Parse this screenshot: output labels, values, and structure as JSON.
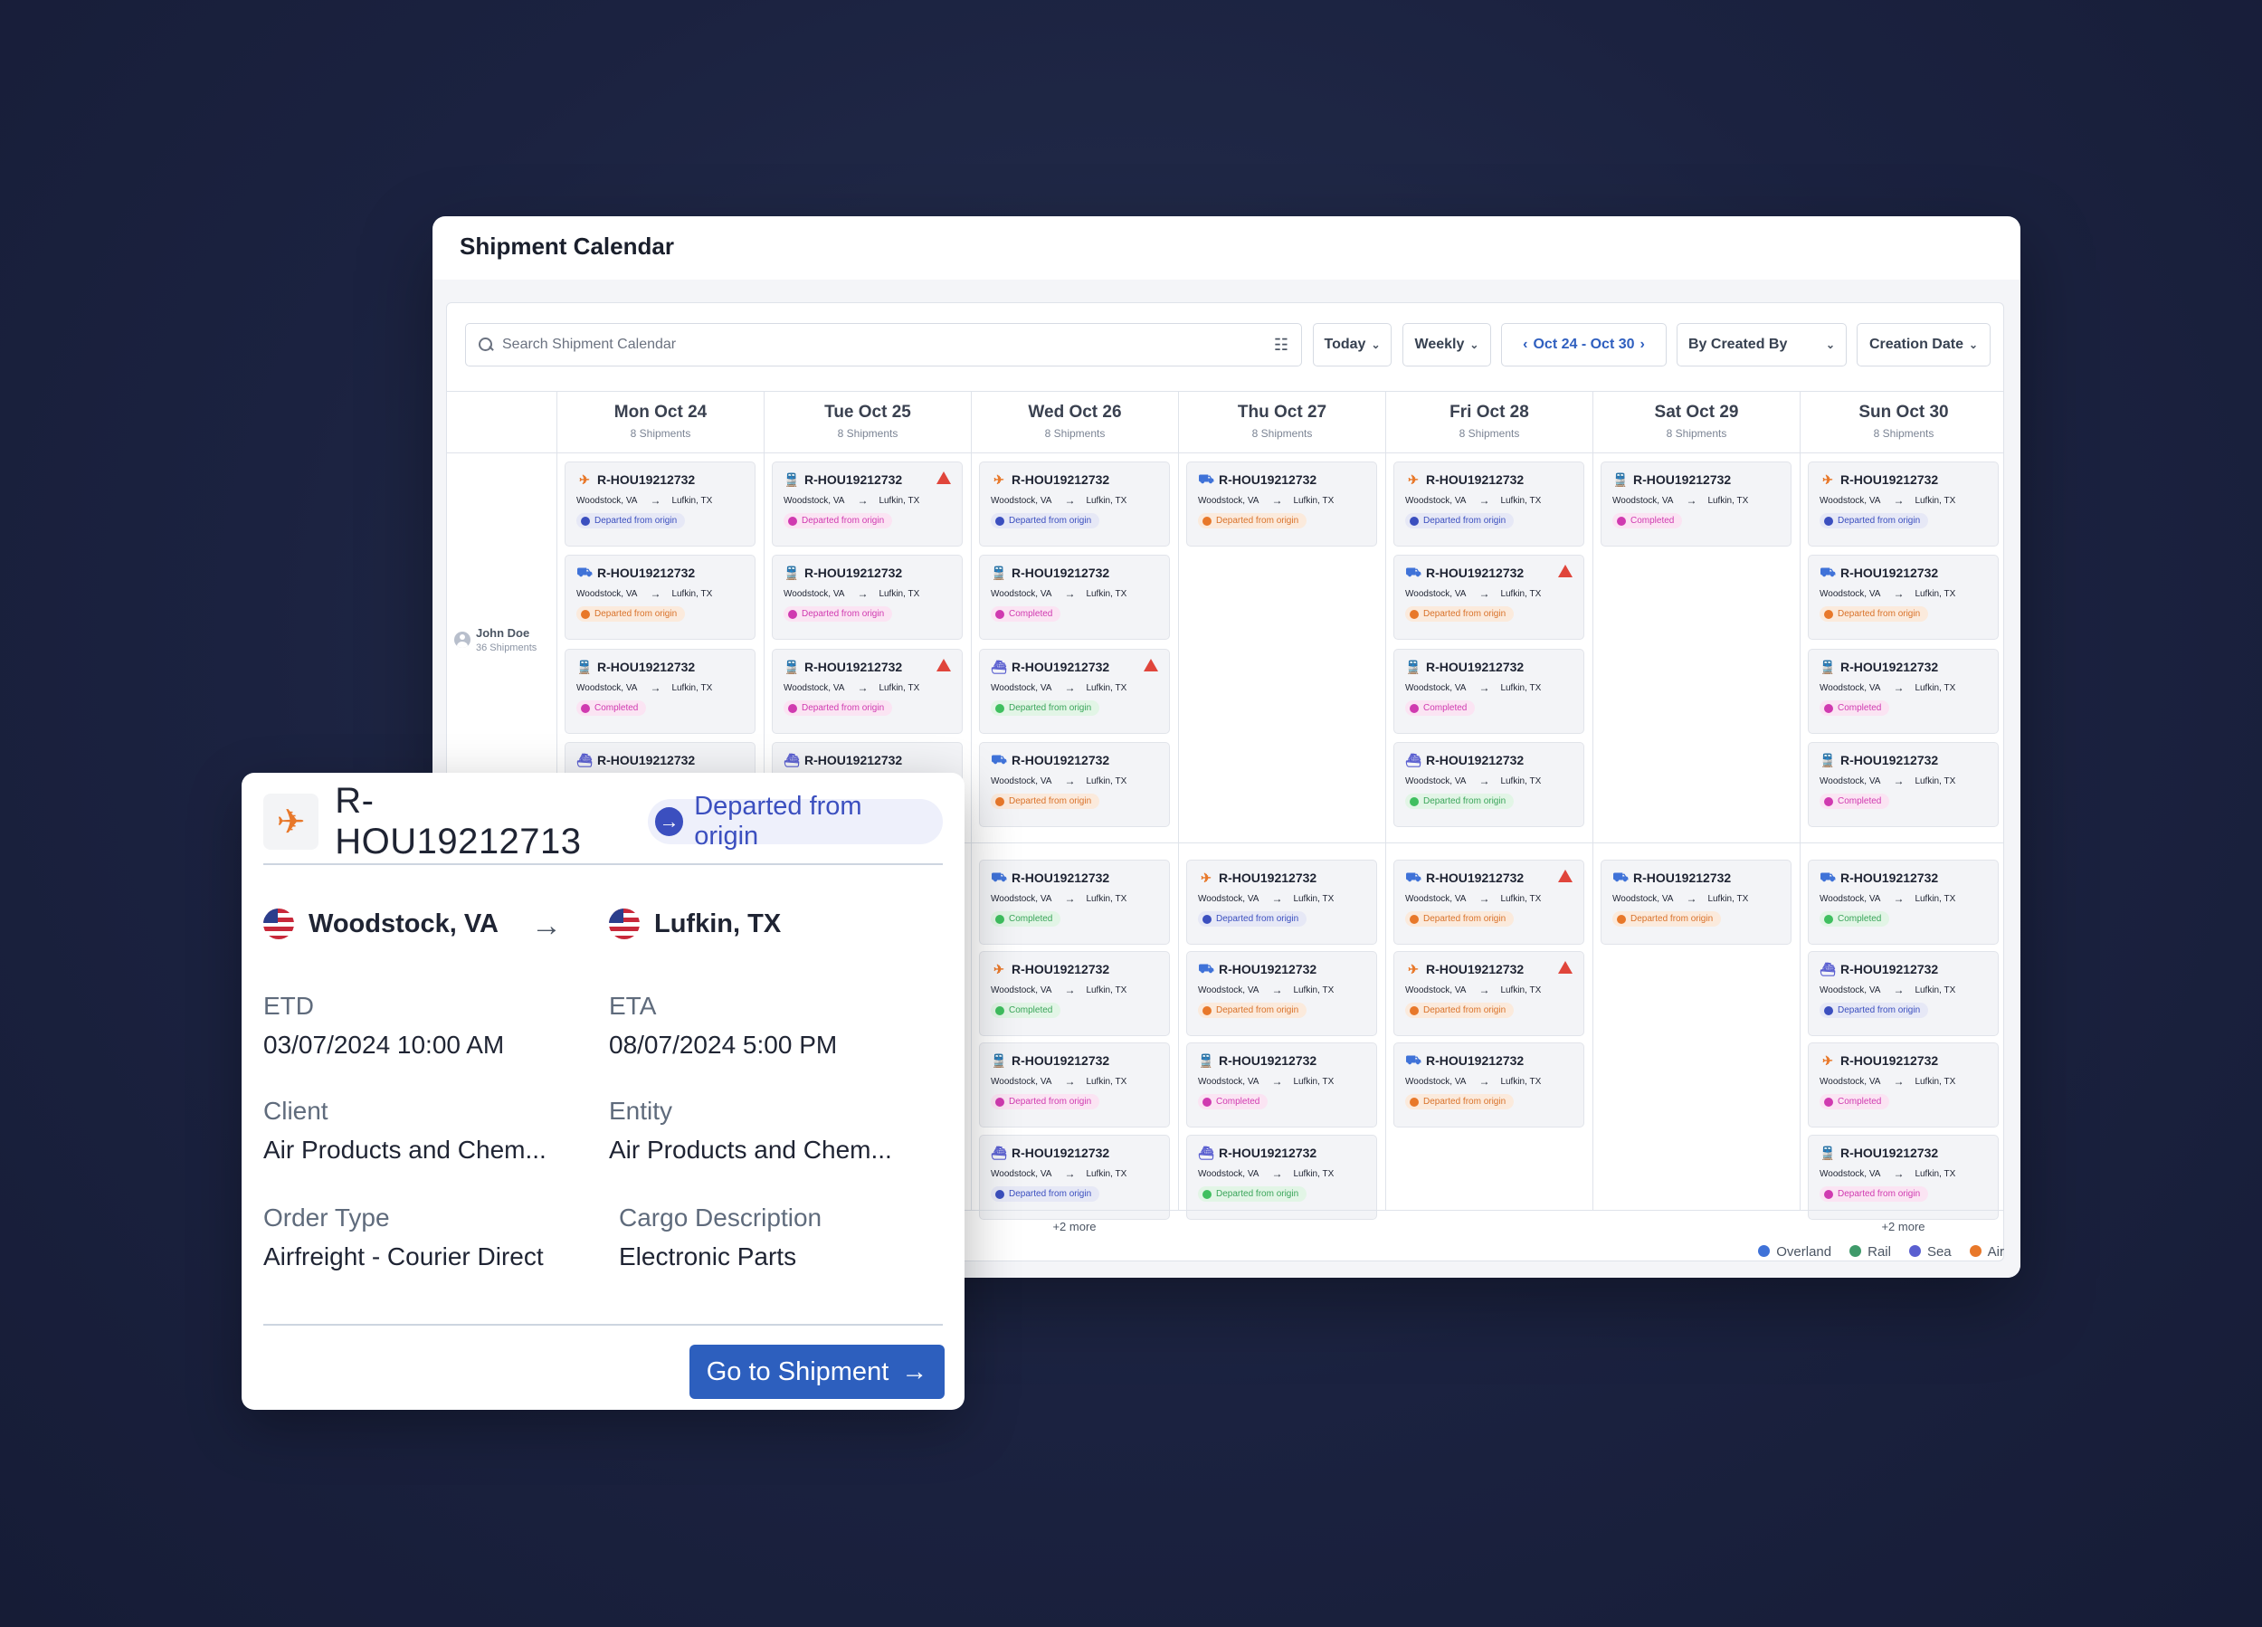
{
  "window": {
    "title": "Shipment Calendar"
  },
  "toolbar": {
    "search_placeholder": "Search Shipment Calendar",
    "filter_icon": "sliders-icon",
    "today": "Today",
    "view": "Weekly",
    "date_range": "Oct 24 - Oct 30",
    "group_by": "By Created By",
    "sort": "Creation Date"
  },
  "days": [
    {
      "label": "Mon Oct 24",
      "count": "8 Shipments"
    },
    {
      "label": "Tue Oct 25",
      "count": "8 Shipments"
    },
    {
      "label": "Wed Oct 26",
      "count": "8 Shipments"
    },
    {
      "label": "Thu Oct 27",
      "count": "8 Shipments"
    },
    {
      "label": "Fri Oct 28",
      "count": "8 Shipments"
    },
    {
      "label": "Sat Oct 29",
      "count": "8 Shipments"
    },
    {
      "label": "Sun Oct 30",
      "count": "8 Shipments"
    }
  ],
  "user": {
    "name": "John Doe",
    "count": "36 Shipments"
  },
  "card_text": {
    "origin": "Woodstock, VA",
    "destination": "Lufkin, TX"
  },
  "status_labels": {
    "departed": "Departed from origin",
    "completed": "Completed"
  },
  "more_label": "+2 more",
  "mode_icons": {
    "air": "plane-icon",
    "overland": "truck-icon",
    "rail": "train-icon",
    "sea": "ship-icon"
  },
  "mode_colors": {
    "air": "#e8782a",
    "overland": "#3f72d8",
    "rail": "#3f9a6a",
    "sea": "#5a5fd0"
  },
  "cards": [
    {
      "day": 0,
      "slot": 0,
      "mode": "air",
      "id": "R-HOU19212732",
      "status": "departed",
      "tone": "navy",
      "warn": false
    },
    {
      "day": 0,
      "slot": 1,
      "mode": "overland",
      "id": "R-HOU19212732",
      "status": "departed",
      "tone": "orange",
      "warn": false
    },
    {
      "day": 0,
      "slot": 2,
      "mode": "rail",
      "id": "R-HOU19212732",
      "status": "completed",
      "tone": "pink",
      "warn": false
    },
    {
      "day": 0,
      "slot": 3,
      "mode": "sea",
      "id": "R-HOU19212732",
      "status": "departed",
      "tone": "navy",
      "warn": false
    },
    {
      "day": 1,
      "slot": 0,
      "mode": "rail",
      "id": "R-HOU19212732",
      "status": "departed",
      "tone": "pink",
      "warn": true
    },
    {
      "day": 1,
      "slot": 1,
      "mode": "rail",
      "id": "R-HOU19212732",
      "status": "departed",
      "tone": "pink",
      "warn": false
    },
    {
      "day": 1,
      "slot": 2,
      "mode": "rail",
      "id": "R-HOU19212732",
      "status": "departed",
      "tone": "pink",
      "warn": true
    },
    {
      "day": 1,
      "slot": 3,
      "mode": "sea",
      "id": "R-HOU19212732",
      "status": "departed",
      "tone": "navy",
      "warn": false
    },
    {
      "day": 2,
      "slot": 0,
      "mode": "air",
      "id": "R-HOU19212732",
      "status": "departed",
      "tone": "navy",
      "warn": false
    },
    {
      "day": 2,
      "slot": 1,
      "mode": "rail",
      "id": "R-HOU19212732",
      "status": "completed",
      "tone": "pink",
      "warn": false
    },
    {
      "day": 2,
      "slot": 2,
      "mode": "sea",
      "id": "R-HOU19212732",
      "status": "departed",
      "tone": "green",
      "warn": true
    },
    {
      "day": 2,
      "slot": 3,
      "mode": "overland",
      "id": "R-HOU19212732",
      "status": "departed",
      "tone": "orange",
      "warn": false
    },
    {
      "day": 2,
      "slot": 4,
      "mode": "overland",
      "id": "R-HOU19212732",
      "status": "completed",
      "tone": "green",
      "warn": false
    },
    {
      "day": 2,
      "slot": 5,
      "mode": "air",
      "id": "R-HOU19212732",
      "status": "completed",
      "tone": "green",
      "warn": false
    },
    {
      "day": 2,
      "slot": 6,
      "mode": "rail",
      "id": "R-HOU19212732",
      "status": "departed",
      "tone": "pink",
      "warn": false
    },
    {
      "day": 2,
      "slot": 7,
      "mode": "sea",
      "id": "R-HOU19212732",
      "status": "departed",
      "tone": "navy",
      "warn": false
    },
    {
      "day": 3,
      "slot": 0,
      "mode": "overland",
      "id": "R-HOU19212732",
      "status": "departed",
      "tone": "orange",
      "warn": false
    },
    {
      "day": 3,
      "slot": 4,
      "mode": "air",
      "id": "R-HOU19212732",
      "status": "departed",
      "tone": "navy",
      "warn": false
    },
    {
      "day": 3,
      "slot": 5,
      "mode": "overland",
      "id": "R-HOU19212732",
      "status": "departed",
      "tone": "orange",
      "warn": false
    },
    {
      "day": 3,
      "slot": 6,
      "mode": "rail",
      "id": "R-HOU19212732",
      "status": "completed",
      "tone": "pink",
      "warn": false
    },
    {
      "day": 3,
      "slot": 7,
      "mode": "sea",
      "id": "R-HOU19212732",
      "status": "departed",
      "tone": "green",
      "warn": false
    },
    {
      "day": 4,
      "slot": 0,
      "mode": "air",
      "id": "R-HOU19212732",
      "status": "departed",
      "tone": "navy",
      "warn": false
    },
    {
      "day": 4,
      "slot": 1,
      "mode": "overland",
      "id": "R-HOU19212732",
      "status": "departed",
      "tone": "orange",
      "warn": true
    },
    {
      "day": 4,
      "slot": 2,
      "mode": "rail",
      "id": "R-HOU19212732",
      "status": "completed",
      "tone": "pink",
      "warn": false
    },
    {
      "day": 4,
      "slot": 3,
      "mode": "sea",
      "id": "R-HOU19212732",
      "status": "departed",
      "tone": "green",
      "warn": false
    },
    {
      "day": 4,
      "slot": 4,
      "mode": "overland",
      "id": "R-HOU19212732",
      "status": "departed",
      "tone": "orange",
      "warn": true
    },
    {
      "day": 4,
      "slot": 5,
      "mode": "air",
      "id": "R-HOU19212732",
      "status": "departed",
      "tone": "orange",
      "warn": true
    },
    {
      "day": 4,
      "slot": 6,
      "mode": "overland",
      "id": "R-HOU19212732",
      "status": "departed",
      "tone": "orange",
      "warn": false
    },
    {
      "day": 5,
      "slot": 0,
      "mode": "rail",
      "id": "R-HOU19212732",
      "status": "completed",
      "tone": "pink",
      "warn": false
    },
    {
      "day": 5,
      "slot": 4,
      "mode": "overland",
      "id": "R-HOU19212732",
      "status": "departed",
      "tone": "orange",
      "warn": false
    },
    {
      "day": 6,
      "slot": 0,
      "mode": "air",
      "id": "R-HOU19212732",
      "status": "departed",
      "tone": "navy",
      "warn": false
    },
    {
      "day": 6,
      "slot": 1,
      "mode": "overland",
      "id": "R-HOU19212732",
      "status": "departed",
      "tone": "orange",
      "warn": false
    },
    {
      "day": 6,
      "slot": 2,
      "mode": "rail",
      "id": "R-HOU19212732",
      "status": "completed",
      "tone": "pink",
      "warn": false
    },
    {
      "day": 6,
      "slot": 3,
      "mode": "rail",
      "id": "R-HOU19212732",
      "status": "completed",
      "tone": "pink",
      "warn": false
    },
    {
      "day": 6,
      "slot": 4,
      "mode": "overland",
      "id": "R-HOU19212732",
      "status": "completed",
      "tone": "green",
      "warn": false
    },
    {
      "day": 6,
      "slot": 5,
      "mode": "sea",
      "id": "R-HOU19212732",
      "status": "departed",
      "tone": "navy",
      "warn": false
    },
    {
      "day": 6,
      "slot": 6,
      "mode": "air",
      "id": "R-HOU19212732",
      "status": "completed",
      "tone": "pink",
      "warn": false
    },
    {
      "day": 6,
      "slot": 7,
      "mode": "rail",
      "id": "R-HOU19212732",
      "status": "departed",
      "tone": "pink",
      "warn": false
    }
  ],
  "more_days": [
    2,
    6
  ],
  "legend": [
    {
      "label": "Overland",
      "color": "#3f72d8"
    },
    {
      "label": "Rail",
      "color": "#3f9a6a"
    },
    {
      "label": "Sea",
      "color": "#5a5fd0"
    },
    {
      "label": "Air",
      "color": "#e8782a"
    }
  ],
  "popup": {
    "shipment_id": "R-HOU19212713",
    "status": "Departed from origin",
    "origin": "Woodstock, VA",
    "destination": "Lufkin, TX",
    "etd_label": "ETD",
    "etd": "03/07/2024 10:00 AM",
    "eta_label": "ETA",
    "eta": "08/07/2024 5:00 PM",
    "client_label": "Client",
    "client": "Air Products and Chem...",
    "entity_label": "Entity",
    "entity": "Air Products and Chem...",
    "order_type_label": "Order Type",
    "order_type": "Airfreight - Courier Direct",
    "cargo_label": "Cargo Description",
    "cargo": "Electronic Parts",
    "button": "Go to Shipment"
  }
}
